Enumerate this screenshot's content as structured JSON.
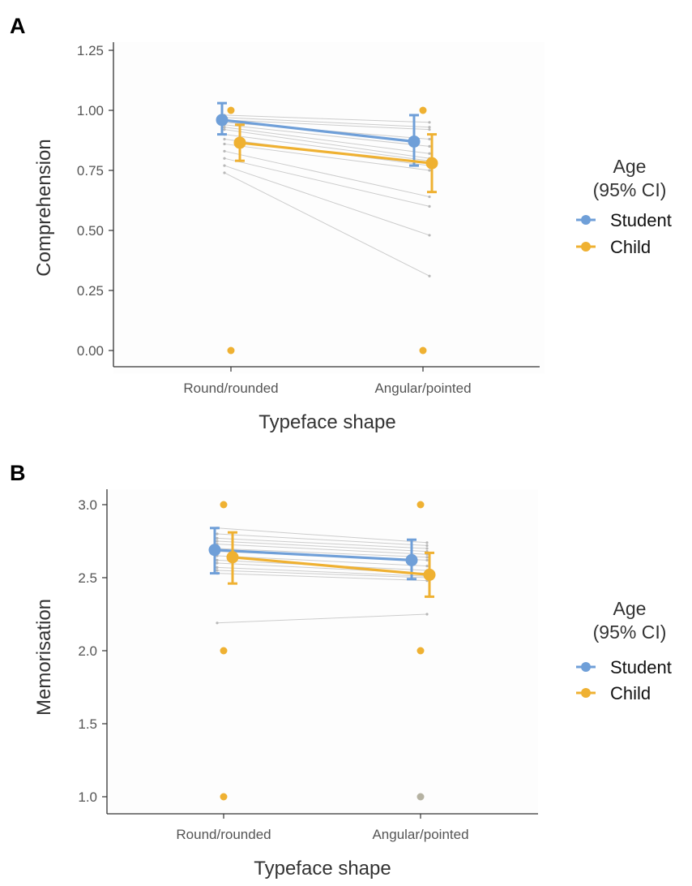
{
  "chart_data": [
    {
      "type": "line",
      "panel": "A",
      "title": "",
      "xlabel": "Typeface shape",
      "ylabel": "Comprehension",
      "categories": [
        "Round/rounded",
        "Angular/pointed"
      ],
      "ylim": [
        0,
        1.25
      ],
      "yticks": [
        0.0,
        0.25,
        0.5,
        0.75,
        1.0,
        1.25
      ],
      "ytick_labels": [
        "0.00",
        "0.25",
        "0.50",
        "0.75",
        "1.00",
        "1.25"
      ],
      "grid": false,
      "legend_position": "right",
      "legend_title": [
        "Age",
        "(95% CI)"
      ],
      "series": [
        {
          "name": "Student",
          "color": "#6f9fd8",
          "values": [
            0.96,
            0.87
          ],
          "ci_low": [
            0.9,
            0.77
          ],
          "ci_high": [
            1.03,
            0.98
          ]
        },
        {
          "name": "Child",
          "color": "#efb132",
          "values": [
            0.865,
            0.78
          ],
          "ci_low": [
            0.79,
            0.66
          ],
          "ci_high": [
            0.94,
            0.9
          ]
        }
      ],
      "individual_lines": [
        [
          0.98,
          0.95
        ],
        [
          0.97,
          0.93
        ],
        [
          0.96,
          0.92
        ],
        [
          0.95,
          0.88
        ],
        [
          0.94,
          0.85
        ],
        [
          0.93,
          0.82
        ],
        [
          0.92,
          0.8
        ],
        [
          0.9,
          0.79
        ],
        [
          0.88,
          0.77
        ],
        [
          0.86,
          0.75
        ],
        [
          0.83,
          0.64
        ],
        [
          0.8,
          0.6
        ],
        [
          0.77,
          0.48
        ],
        [
          0.74,
          0.31
        ]
      ],
      "child_points": [
        {
          "category": "Round/rounded",
          "value": 1.0
        },
        {
          "category": "Round/rounded",
          "value": 0.0
        },
        {
          "category": "Angular/pointed",
          "value": 1.0
        },
        {
          "category": "Angular/pointed",
          "value": 0.0
        }
      ]
    },
    {
      "type": "line",
      "panel": "B",
      "title": "",
      "xlabel": "Typeface shape",
      "ylabel": "Memorisation",
      "categories": [
        "Round/rounded",
        "Angular/pointed"
      ],
      "ylim": [
        1.0,
        3.0
      ],
      "yticks": [
        1.0,
        1.5,
        2.0,
        2.5,
        3.0
      ],
      "ytick_labels": [
        "1.0",
        "1.5",
        "2.0",
        "2.5",
        "3.0"
      ],
      "grid": false,
      "legend_position": "right",
      "legend_title": [
        "Age",
        "(95% CI)"
      ],
      "series": [
        {
          "name": "Student",
          "color": "#6f9fd8",
          "values": [
            2.69,
            2.62
          ],
          "ci_low": [
            2.53,
            2.49
          ],
          "ci_high": [
            2.84,
            2.76
          ]
        },
        {
          "name": "Child",
          "color": "#efb132",
          "values": [
            2.64,
            2.52
          ],
          "ci_low": [
            2.46,
            2.37
          ],
          "ci_high": [
            2.81,
            2.67
          ]
        }
      ],
      "individual_lines": [
        [
          2.84,
          2.74
        ],
        [
          2.8,
          2.72
        ],
        [
          2.77,
          2.7
        ],
        [
          2.75,
          2.68
        ],
        [
          2.73,
          2.66
        ],
        [
          2.7,
          2.64
        ],
        [
          2.68,
          2.62
        ],
        [
          2.65,
          2.58
        ],
        [
          2.62,
          2.55
        ],
        [
          2.6,
          2.53
        ],
        [
          2.57,
          2.51
        ],
        [
          2.55,
          2.5
        ],
        [
          2.53,
          2.48
        ],
        [
          2.19,
          2.25
        ]
      ],
      "child_points": [
        {
          "category": "Round/rounded",
          "value": 3.0
        },
        {
          "category": "Round/rounded",
          "value": 2.0
        },
        {
          "category": "Round/rounded",
          "value": 1.0
        },
        {
          "category": "Angular/pointed",
          "value": 3.0
        },
        {
          "category": "Angular/pointed",
          "value": 2.0
        }
      ],
      "other_points": [
        {
          "category": "Angular/pointed",
          "value": 1.0,
          "color": "#b5b2a2"
        }
      ]
    }
  ]
}
